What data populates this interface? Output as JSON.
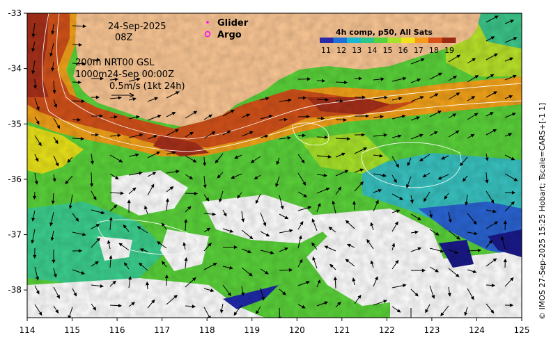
{
  "map": {
    "date": "24-Sep-2025",
    "hour": "08Z",
    "info_lines": [
      "200m  NRT00 GSL",
      "1000m24-Sep 00:00Z",
      "0.5m/s (1kt 24h)"
    ],
    "legend": {
      "glider_label": "Glider",
      "argo_label": "Argo",
      "glider_color": "#ff00ff",
      "argo_color": "#ff00ff"
    },
    "colorbar": {
      "title": "4h comp, p50, All Sats",
      "ticks": [
        "11",
        "12",
        "13",
        "14",
        "15",
        "16",
        "17",
        "18",
        "19"
      ],
      "colors": [
        "#2a2aa8",
        "#1f6fd8",
        "#18b8d0",
        "#2cc68a",
        "#56d23c",
        "#a8e22a",
        "#f2e21a",
        "#f79a1a",
        "#d8501a",
        "#9a2a12"
      ]
    },
    "x_ticks": [
      "114",
      "115",
      "116",
      "117",
      "118",
      "119",
      "120",
      "121",
      "122",
      "123",
      "124",
      "125"
    ],
    "y_ticks": [
      "-33",
      "-34",
      "-35",
      "-36",
      "-37",
      "-38"
    ],
    "lon_range": [
      114,
      125
    ],
    "lat_range": [
      -38.5,
      -33
    ],
    "credit": "© IMOS 27-Sep-2025 15:25 Hobart; Tscale=CARS+[-1 1]",
    "colors": {
      "land": "#fbc795",
      "no_data": "#ffffff",
      "frame": "#000000"
    }
  }
}
